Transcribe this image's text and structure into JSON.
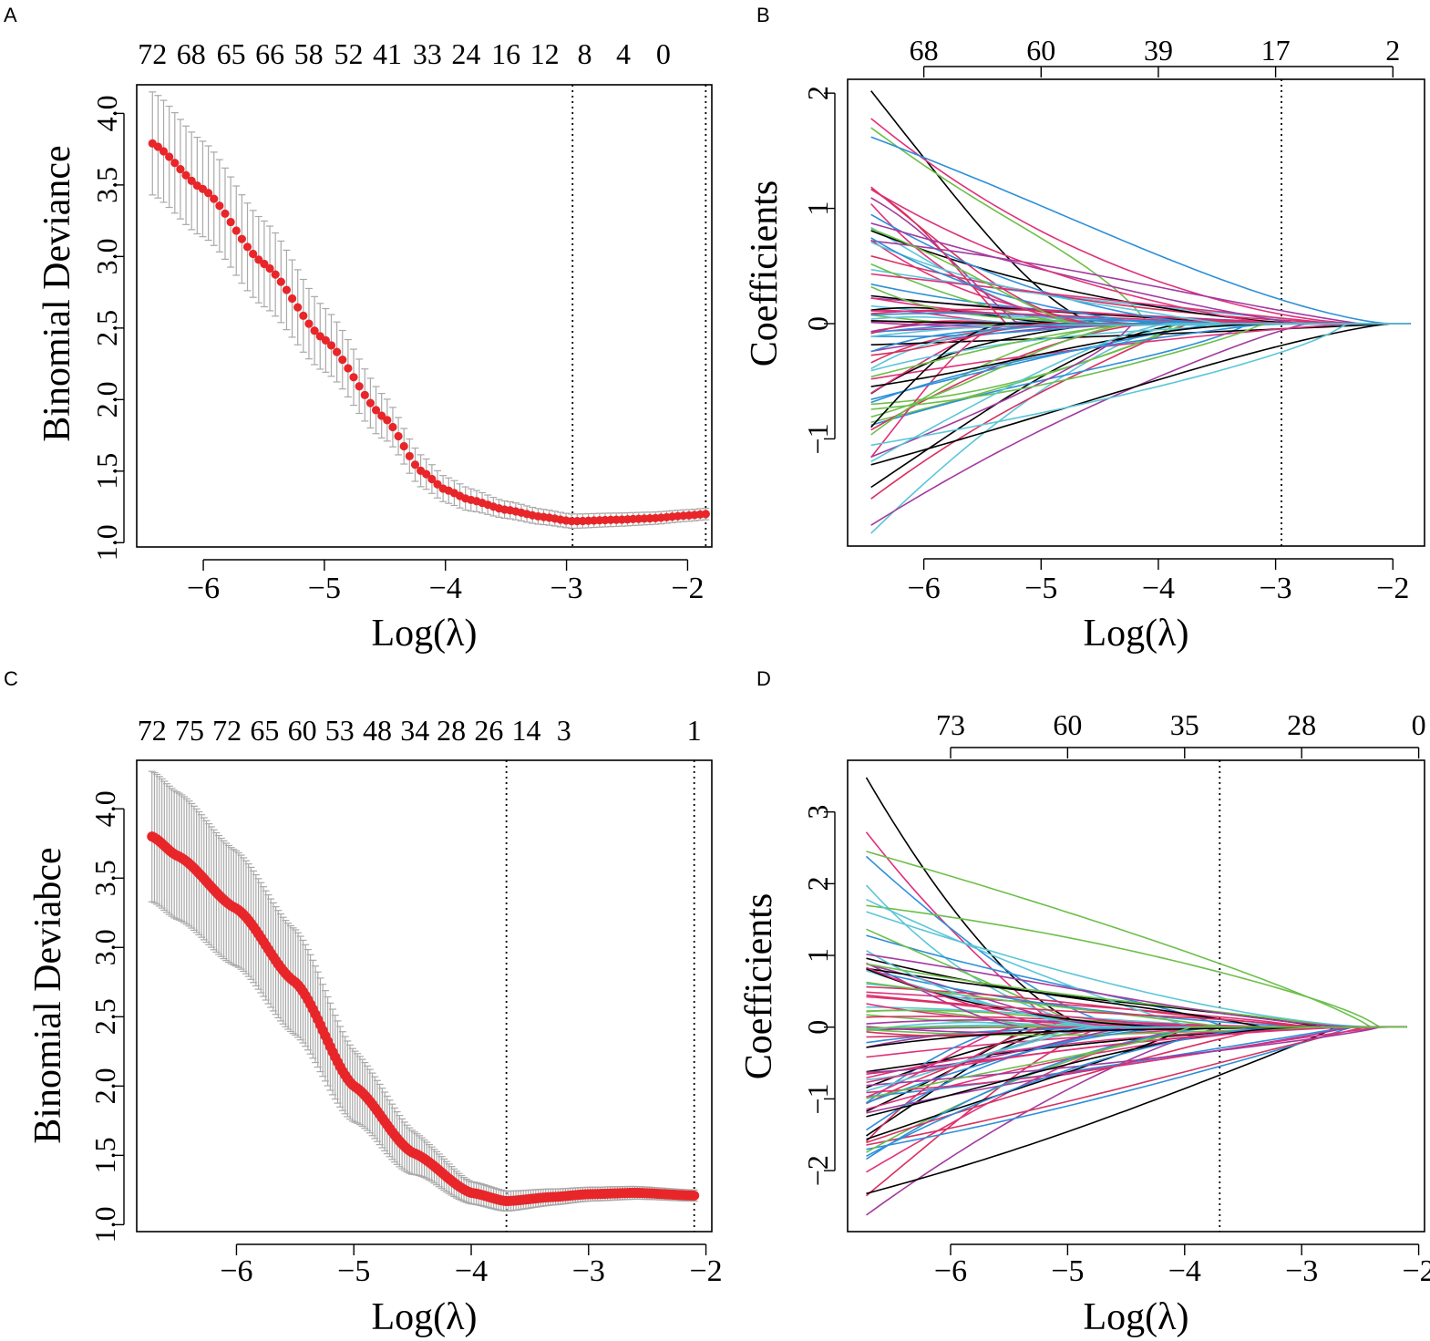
{
  "colors": {
    "point": "#e8262a",
    "errorbar": "#a9a9a9",
    "axis": "#000000",
    "paths": [
      "#000000",
      "#e0307a",
      "#6cbf4a",
      "#2d8fd8",
      "#5bc6d8",
      "#a23aa0",
      "#d83060"
    ]
  },
  "chart_data": [
    {
      "panel": "A",
      "type": "scatter",
      "subtype": "cv-deviance",
      "xlabel": "Log(λ)",
      "ylabel": "Binomial Deviance",
      "xlim": [
        -6.55,
        -1.8
      ],
      "ylim": [
        0.97,
        4.2
      ],
      "xticks": [
        -6,
        -5,
        -4,
        -3,
        -2
      ],
      "xtick_labels": [
        "−6",
        "−5",
        "−4",
        "−3",
        "−2"
      ],
      "yticks": [
        1.0,
        1.5,
        2.0,
        2.5,
        3.0,
        3.5,
        4.0
      ],
      "ytick_labels": [
        "1.0",
        "1.5",
        "2.0",
        "2.5",
        "3.0",
        "3.5",
        "4.0"
      ],
      "top_tick_labels": [
        "72",
        "68",
        "65",
        "66",
        "58",
        "52",
        "41",
        "33",
        "24",
        "16",
        "12",
        "8",
        "4",
        "0"
      ],
      "top_tick_x": [
        -6.42,
        -6.1,
        -5.77,
        -5.45,
        -5.13,
        -4.8,
        -4.48,
        -4.15,
        -3.83,
        -3.5,
        -3.18,
        -2.85,
        -2.53,
        -2.2
      ],
      "vlines": [
        -2.95,
        -1.85
      ],
      "curve_knots": {
        "x": [
          -6.42,
          -6.0,
          -5.5,
          -5.0,
          -4.5,
          -4.2,
          -4.0,
          -3.8,
          -3.5,
          -3.2,
          -2.95,
          -2.6,
          -2.3,
          -2.0,
          -1.85
        ],
        "y": [
          3.79,
          3.47,
          2.95,
          2.42,
          1.87,
          1.5,
          1.37,
          1.3,
          1.23,
          1.18,
          1.15,
          1.16,
          1.17,
          1.19,
          1.2
        ]
      },
      "n_points": 100,
      "se_knots": {
        "x": [
          -6.42,
          -5.5,
          -4.8,
          -4.3,
          -4.0,
          -3.5,
          -3.0,
          -1.85
        ],
        "y": [
          0.36,
          0.3,
          0.2,
          0.12,
          0.09,
          0.06,
          0.05,
          0.04
        ]
      }
    },
    {
      "panel": "B",
      "type": "line",
      "subtype": "coefficient-paths",
      "xlabel": "Log(λ)",
      "ylabel": "Coefficients",
      "xlim": [
        -6.65,
        -1.73
      ],
      "ylim": [
        -1.93,
        2.12
      ],
      "xticks": [
        -6,
        -5,
        -4,
        -3,
        -2
      ],
      "xtick_labels": [
        "−6",
        "−5",
        "−4",
        "−3",
        "−2"
      ],
      "yticks": [
        -1,
        0,
        1,
        2
      ],
      "ytick_labels": [
        "−1",
        "0",
        "1",
        "2"
      ],
      "top_tick_labels": [
        "68",
        "60",
        "39",
        "17",
        "2"
      ],
      "top_tick_x": [
        -6.0,
        -5.0,
        -4.0,
        -3.0,
        -2.0
      ],
      "vlines": [
        -2.95
      ],
      "x_start": -6.45,
      "x_end": -1.85,
      "n_paths": 75,
      "start_extremes": [
        2.02,
        1.78,
        1.7,
        1.62,
        -1.82,
        -1.75,
        -1.52,
        -1.42
      ],
      "seed": 7
    },
    {
      "panel": "C",
      "type": "scatter",
      "subtype": "cv-deviance",
      "xlabel": "Log(λ)",
      "ylabel": "Binomial Deviabce",
      "xlim": [
        -6.85,
        -1.95
      ],
      "ylim": [
        0.95,
        4.35
      ],
      "xticks": [
        -6,
        -5,
        -4,
        -3,
        -2
      ],
      "xtick_labels": [
        "−6",
        "−5",
        "−4",
        "−3",
        "−2"
      ],
      "yticks": [
        1.0,
        1.5,
        2.0,
        2.5,
        3.0,
        3.5,
        4.0
      ],
      "ytick_labels": [
        "1.0",
        "1.5",
        "2.0",
        "2.5",
        "3.0",
        "3.5",
        "4.0"
      ],
      "top_tick_labels": [
        "72",
        "75",
        "72",
        "65",
        "60",
        "53",
        "48",
        "34",
        "28",
        "26",
        "14",
        "3",
        "1"
      ],
      "top_tick_x": [
        -6.72,
        -6.4,
        -6.08,
        -5.76,
        -5.44,
        -5.12,
        -4.8,
        -4.48,
        -4.17,
        -3.85,
        -3.53,
        -3.21,
        -2.1
      ],
      "vlines": [
        -3.7,
        -2.1
      ],
      "curve_knots": {
        "x": [
          -6.72,
          -6.5,
          -6.0,
          -5.5,
          -5.0,
          -4.5,
          -4.0,
          -3.7,
          -3.3,
          -3.0,
          -2.6,
          -2.1
        ],
        "y": [
          3.8,
          3.66,
          3.28,
          2.75,
          2.0,
          1.52,
          1.23,
          1.17,
          1.2,
          1.22,
          1.23,
          1.21
        ]
      },
      "n_points": 220,
      "se_knots": {
        "x": [
          -6.72,
          -5.5,
          -4.8,
          -4.3,
          -4.0,
          -3.0,
          -2.1
        ],
        "y": [
          0.47,
          0.38,
          0.22,
          0.12,
          0.08,
          0.05,
          0.04
        ]
      }
    },
    {
      "panel": "D",
      "type": "line",
      "subtype": "coefficient-paths",
      "xlabel": "Log(λ)",
      "ylabel": "Coefficients",
      "xlim": [
        -6.88,
        -1.95
      ],
      "ylim": [
        -2.85,
        3.72
      ],
      "xticks": [
        -6,
        -5,
        -4,
        -3,
        -2
      ],
      "xtick_labels": [
        "−6",
        "−5",
        "−4",
        "−3",
        "−2"
      ],
      "yticks": [
        -2,
        -1,
        0,
        1,
        2,
        3
      ],
      "ytick_labels": [
        "−2",
        "−1",
        "0",
        "1",
        "2",
        "3"
      ],
      "top_tick_labels": [
        "73",
        "60",
        "35",
        "28",
        "0"
      ],
      "top_tick_x": [
        -6.0,
        -5.0,
        -4.0,
        -3.0,
        -2.0
      ],
      "vlines": [
        -3.7
      ],
      "x_start": -6.72,
      "x_end": -2.1,
      "n_paths": 80,
      "start_extremes": [
        3.48,
        2.72,
        2.45,
        2.38,
        1.98,
        -2.62,
        -2.35,
        -2.32,
        -2.02
      ],
      "seed": 13
    }
  ],
  "panels": {
    "a": {
      "letter": "A"
    },
    "b": {
      "letter": "B"
    },
    "c": {
      "letter": "C"
    },
    "d": {
      "letter": "D"
    }
  }
}
